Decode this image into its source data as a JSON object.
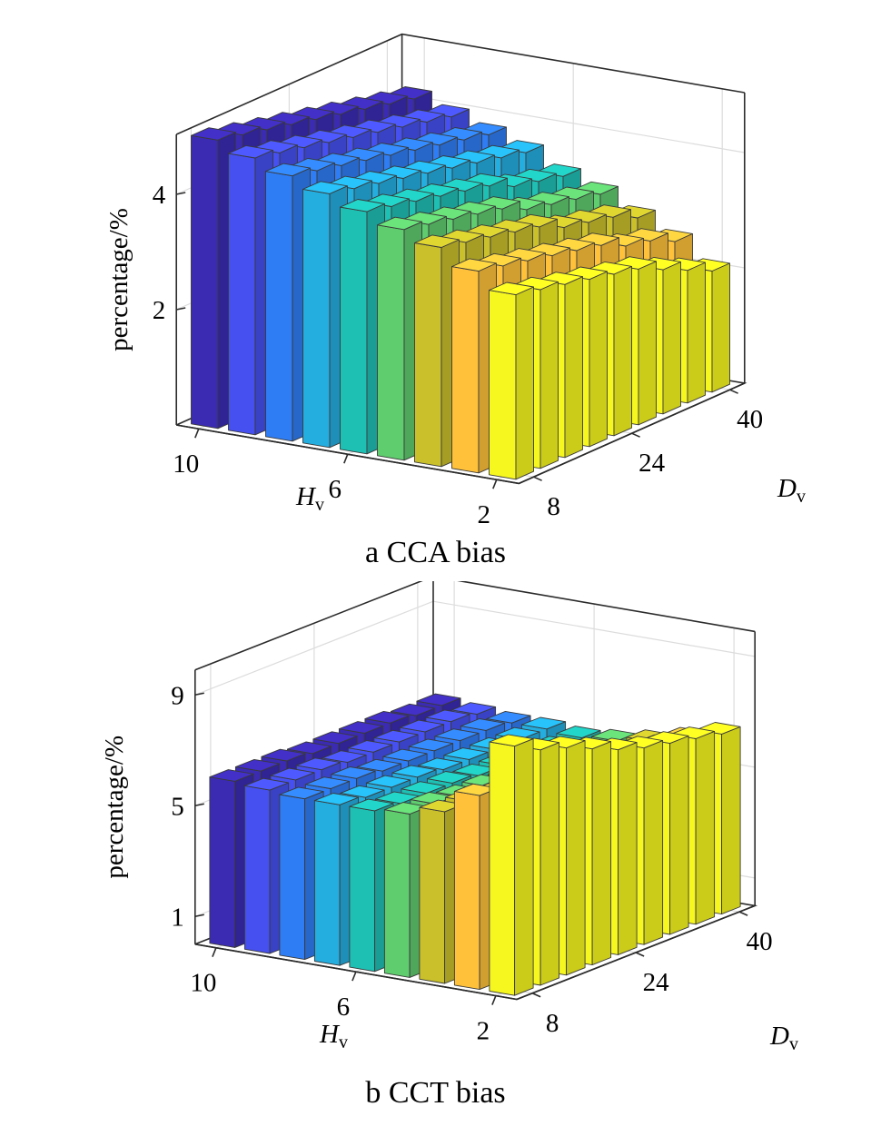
{
  "chart_data": [
    {
      "type": "bar3d",
      "caption": "a CCA bias",
      "zlabel": "percentage/%",
      "xlabel": "H",
      "xlabel_sub": "v",
      "ylabel": "D",
      "ylabel_sub": "v",
      "zlim": [
        0,
        5
      ],
      "zticks": [
        "2",
        "4"
      ],
      "zticks_values": [
        2,
        4
      ],
      "x_ticks": [
        "10",
        "6",
        "2"
      ],
      "y_ticks": [
        "8",
        "24",
        "40"
      ],
      "H_v": [
        10,
        9,
        8,
        7,
        6,
        5,
        4,
        3,
        2
      ],
      "D_v": [
        8,
        12,
        16,
        20,
        24,
        28,
        32,
        36,
        40
      ],
      "grid": true,
      "colormap": "parula",
      "values": [
        [
          5.0,
          4.8,
          4.6,
          4.4,
          4.2,
          4.0,
          3.8,
          3.5,
          3.2
        ],
        [
          4.9,
          4.7,
          4.5,
          4.3,
          4.1,
          3.9,
          3.7,
          3.4,
          3.1
        ],
        [
          4.8,
          4.6,
          4.4,
          4.2,
          4.0,
          3.8,
          3.6,
          3.3,
          3.0
        ],
        [
          4.7,
          4.5,
          4.3,
          4.1,
          3.9,
          3.7,
          3.5,
          3.2,
          2.9
        ],
        [
          4.6,
          4.4,
          4.2,
          4.0,
          3.8,
          3.6,
          3.4,
          3.1,
          2.8
        ],
        [
          4.5,
          4.3,
          4.1,
          3.9,
          3.7,
          3.4,
          3.2,
          3.0,
          2.7
        ],
        [
          4.4,
          4.2,
          4.0,
          3.8,
          3.5,
          3.3,
          3.1,
          2.8,
          2.5
        ],
        [
          4.3,
          4.1,
          3.9,
          3.7,
          3.4,
          3.2,
          3.0,
          2.7,
          2.3
        ],
        [
          4.2,
          4.0,
          3.8,
          3.6,
          3.3,
          3.1,
          2.8,
          2.5,
          2.1
        ]
      ]
    },
    {
      "type": "bar3d",
      "caption": "b CCT bias",
      "zlabel": "percentage/%",
      "xlabel": "H",
      "xlabel_sub": "v",
      "ylabel": "D",
      "ylabel_sub": "v",
      "zlim": [
        0,
        10
      ],
      "zticks": [
        "1",
        "5",
        "9"
      ],
      "zticks_values": [
        1,
        5,
        9
      ],
      "x_ticks": [
        "10",
        "6",
        "2"
      ],
      "y_ticks": [
        "8",
        "24",
        "40"
      ],
      "H_v": [
        10,
        9,
        8,
        7,
        6,
        5,
        4,
        3,
        2
      ],
      "D_v": [
        8,
        12,
        16,
        20,
        24,
        28,
        32,
        36,
        40
      ],
      "grid": true,
      "colormap": "parula",
      "values": [
        [
          6.0,
          5.9,
          5.8,
          5.8,
          5.8,
          5.9,
          6.2,
          7.0,
          9.0
        ],
        [
          6.0,
          5.9,
          5.8,
          5.7,
          5.7,
          5.9,
          6.2,
          6.8,
          8.5
        ],
        [
          6.0,
          5.9,
          5.8,
          5.7,
          5.7,
          5.8,
          6.1,
          6.7,
          8.2
        ],
        [
          5.9,
          5.8,
          5.7,
          5.7,
          5.7,
          5.8,
          6.0,
          6.6,
          7.8
        ],
        [
          5.9,
          5.8,
          5.7,
          5.6,
          5.6,
          5.7,
          6.0,
          6.5,
          7.4
        ],
        [
          5.9,
          5.8,
          5.7,
          5.6,
          5.6,
          5.7,
          5.9,
          6.4,
          7.1
        ],
        [
          5.9,
          5.8,
          5.7,
          5.6,
          5.6,
          5.7,
          5.9,
          6.3,
          6.9
        ],
        [
          5.8,
          5.8,
          5.7,
          5.6,
          5.5,
          5.6,
          5.8,
          6.2,
          6.7
        ],
        [
          5.8,
          5.7,
          5.6,
          5.6,
          5.5,
          5.6,
          5.8,
          6.1,
          6.5
        ]
      ]
    }
  ]
}
